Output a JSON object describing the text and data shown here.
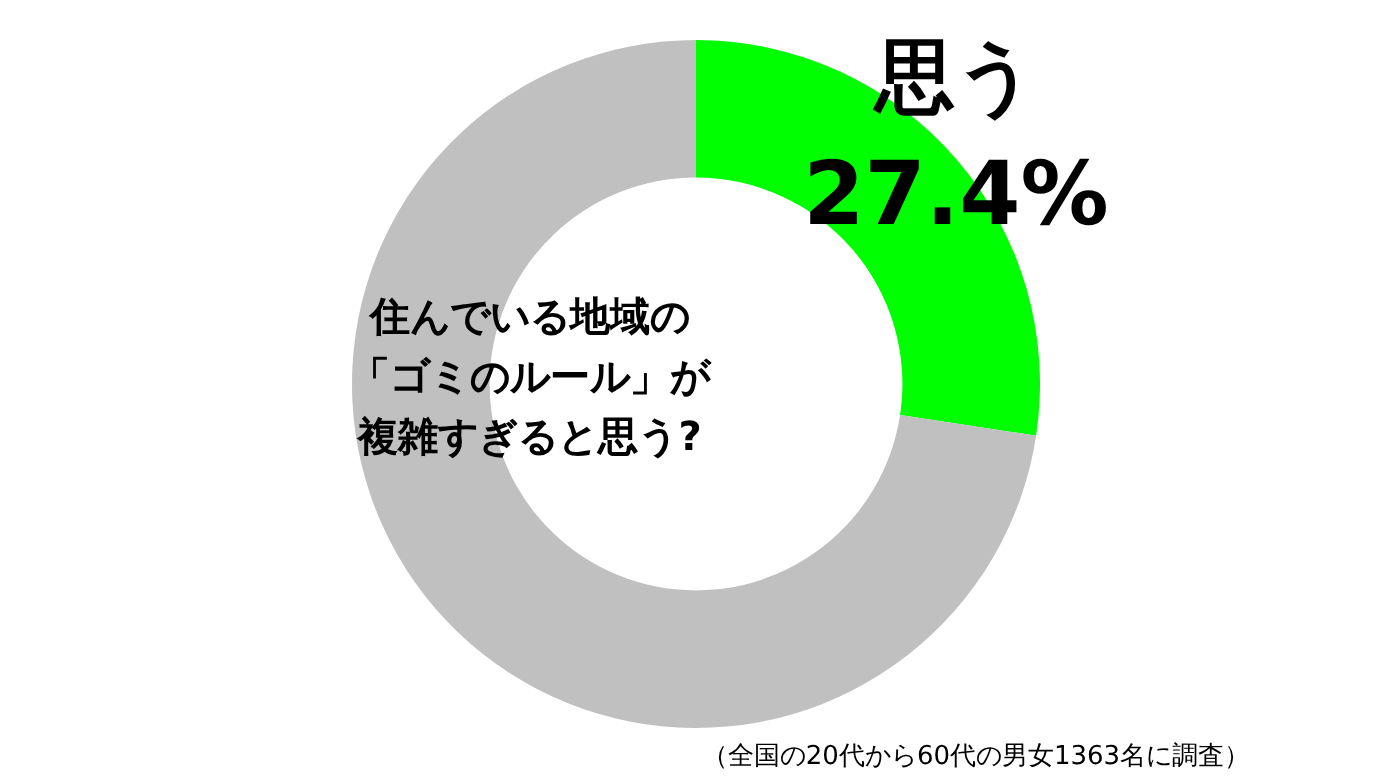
{
  "chart_data": {
    "type": "donut",
    "title": "住んでいる地域の「ゴミのルール」が複雑すぎると思う?",
    "categories": [
      "思う",
      null
    ],
    "values": [
      27.4,
      72.6
    ],
    "colors": [
      "#00ff00",
      "#c0c0c0"
    ],
    "value_labels": [
      "27.4%",
      null
    ],
    "annotations": [
      "（全国の20代から60代の男女1363名に調査）"
    ]
  }
}
